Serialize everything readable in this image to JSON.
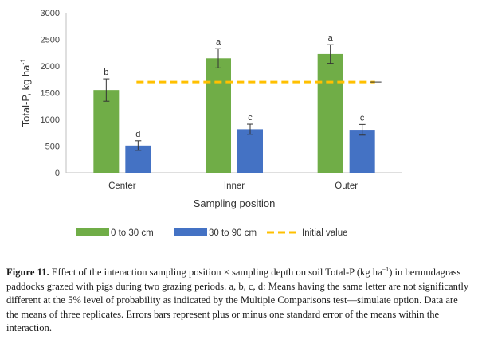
{
  "chart_data": {
    "type": "bar",
    "categories": [
      "Center",
      "Inner",
      "Outer"
    ],
    "xlabel": "Sampling position",
    "ylabel_main": "Total-P, kg ha",
    "ylabel_sup": "-1",
    "ylim": [
      0,
      3000
    ],
    "yticks": [
      0,
      500,
      1000,
      1500,
      2000,
      2500,
      3000
    ],
    "yticks_labels": [
      "0",
      "500",
      "1000",
      "1500",
      "2000",
      "2500",
      "3000"
    ],
    "grid": false,
    "legend_position": "bottom",
    "series": [
      {
        "name": "0 to 30 cm",
        "color": "#70AD47",
        "values": [
          1550,
          2145,
          2225
        ],
        "errors": [
          210,
          180,
          175
        ],
        "letters": [
          "b",
          "a",
          "a"
        ]
      },
      {
        "name": "30 to 90 cm",
        "color": "#4472C4",
        "values": [
          510,
          815,
          805
        ],
        "errors": [
          90,
          95,
          100
        ],
        "letters": [
          "d",
          "c",
          "c"
        ]
      }
    ],
    "reference_line": {
      "name": "Initial value",
      "value": 1700,
      "color": "#FFC000"
    }
  },
  "caption": {
    "label": "Figure 11.",
    "text_1": " Effect of the interaction sampling position × sampling depth on soil Total-P (kg ha",
    "sup_1": "−1",
    "text_2": ") in bermudagrass paddocks grazed with pigs during two grazing periods. a, b, c, d: Means having the same letter are not significantly different at the 5% level of probability as indicated by the Multiple Comparisons test—simulate option. Data are the means of three replicates. Errors bars represent plus or minus one standard error of the means within the interaction."
  }
}
